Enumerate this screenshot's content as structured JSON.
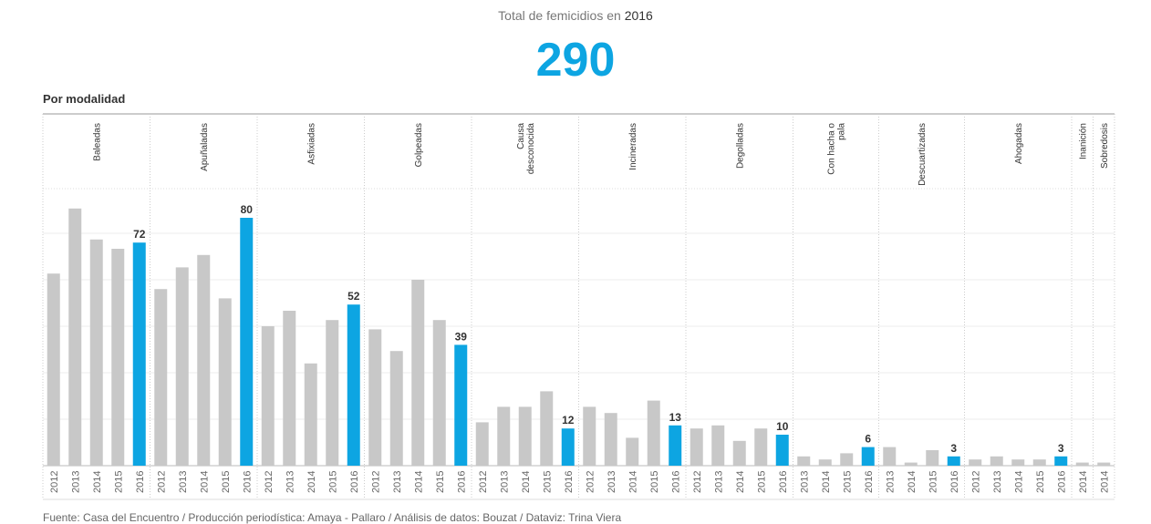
{
  "header": {
    "subtitle_prefix": "Total de femicidios en",
    "subtitle_year": "2016",
    "total": "290"
  },
  "section_title": "Por modalidad",
  "footer": "Fuente: Casa del Encuentro / Producción periodística: Amaya - Pallaro / Análisis de datos: Bouzat / Dataviz: Trina Viera",
  "colors": {
    "default_bar": "#c8c8c8",
    "highlight_bar": "#0da5e2",
    "accent": "#0da5e2"
  },
  "chart_data": {
    "type": "bar",
    "title": "Total de femicidios en 2016",
    "highlight_year": "2016",
    "ylim": [
      0,
      85
    ],
    "grid": true,
    "groups": [
      {
        "name": "Baleadas",
        "years": [
          "2012",
          "2013",
          "2014",
          "2015",
          "2016"
        ],
        "values": [
          62,
          83,
          73,
          70,
          72
        ],
        "labels": [
          "",
          "",
          "",
          "",
          "72"
        ]
      },
      {
        "name": "Apuñaladas",
        "years": [
          "2012",
          "2013",
          "2014",
          "2015",
          "2016"
        ],
        "values": [
          57,
          64,
          68,
          54,
          80
        ],
        "labels": [
          "",
          "",
          "",
          "",
          "80"
        ]
      },
      {
        "name": "Asfixiadas",
        "years": [
          "2012",
          "2013",
          "2014",
          "2015",
          "2016"
        ],
        "values": [
          45,
          50,
          33,
          47,
          52
        ],
        "labels": [
          "",
          "",
          "",
          "",
          "52"
        ]
      },
      {
        "name": "Golpeadas",
        "years": [
          "2012",
          "2013",
          "2014",
          "2015",
          "2016"
        ],
        "values": [
          44,
          37,
          60,
          47,
          39
        ],
        "labels": [
          "",
          "",
          "",
          "",
          "39"
        ]
      },
      {
        "name": "Causa desconocida",
        "years": [
          "2012",
          "2013",
          "2014",
          "2015",
          "2016"
        ],
        "values": [
          14,
          19,
          19,
          24,
          12
        ],
        "labels": [
          "",
          "",
          "",
          "",
          "12"
        ]
      },
      {
        "name": "Incineradas",
        "years": [
          "2012",
          "2013",
          "2014",
          "2015",
          "2016"
        ],
        "values": [
          19,
          17,
          9,
          21,
          13
        ],
        "labels": [
          "",
          "",
          "",
          "",
          "13"
        ]
      },
      {
        "name": "Degolladas",
        "years": [
          "2012",
          "2013",
          "2014",
          "2015",
          "2016"
        ],
        "values": [
          12,
          13,
          8,
          12,
          10
        ],
        "labels": [
          "",
          "",
          "",
          "",
          "10"
        ]
      },
      {
        "name": "Con hacha o pala",
        "years": [
          "2013",
          "2014",
          "2015",
          "2016"
        ],
        "values": [
          3,
          2,
          4,
          6
        ],
        "labels": [
          "",
          "",
          "",
          "6"
        ]
      },
      {
        "name": "Descuartizadas",
        "years": [
          "2013",
          "2014",
          "2015",
          "2016"
        ],
        "values": [
          6,
          1,
          5,
          3
        ],
        "labels": [
          "",
          "",
          "",
          "3"
        ]
      },
      {
        "name": "Ahogadas",
        "years": [
          "2012",
          "2013",
          "2014",
          "2015",
          "2016"
        ],
        "values": [
          2,
          3,
          2,
          2,
          3
        ],
        "labels": [
          "",
          "",
          "",
          "",
          "3"
        ]
      },
      {
        "name": "Inanición",
        "years": [
          "2014"
        ],
        "values": [
          1
        ],
        "labels": [
          ""
        ]
      },
      {
        "name": "Sobredosis",
        "years": [
          "2014"
        ],
        "values": [
          1
        ],
        "labels": [
          ""
        ]
      }
    ]
  }
}
